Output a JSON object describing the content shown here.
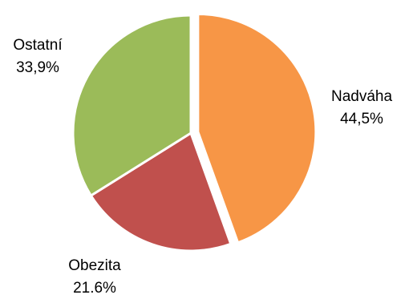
{
  "chart_data": {
    "type": "pie",
    "title": "",
    "slices": [
      {
        "label": "Nadváha",
        "value_text": "44,5%",
        "value": 44.5,
        "color": "#F79646"
      },
      {
        "label": "Obezita",
        "value_text": "21.6%",
        "value": 21.6,
        "color": "#C0504D"
      },
      {
        "label": "Ostatní",
        "value_text": "33,9%",
        "value": 33.9,
        "color": "#9BBB59"
      }
    ],
    "exploded": [
      "Nadváha"
    ],
    "start_angle_deg": 0,
    "direction": "clockwise",
    "slice_border_color": "#ffffff"
  }
}
